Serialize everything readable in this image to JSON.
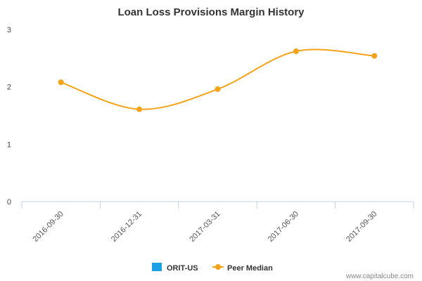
{
  "chart_data": {
    "type": "line",
    "title": "Loan Loss Provisions Margin History",
    "xlabel": "",
    "ylabel": "",
    "categories": [
      "2016-09-30",
      "2016-12-31",
      "2017-03-31",
      "2017-06-30",
      "2017-09-30"
    ],
    "series": [
      {
        "name": "ORIT-US",
        "values": [
          null,
          null,
          null,
          null,
          null
        ],
        "color": "#1ea0e6"
      },
      {
        "name": "Peer Median",
        "values": [
          2.08,
          1.61,
          1.96,
          2.62,
          2.54
        ],
        "color": "#f5a31a"
      }
    ],
    "ylim": [
      0,
      3
    ],
    "yticks": [
      0,
      1,
      2,
      3
    ],
    "grid": false,
    "legend_position": "bottom-center"
  },
  "watermark": "www.capitalcube.com"
}
